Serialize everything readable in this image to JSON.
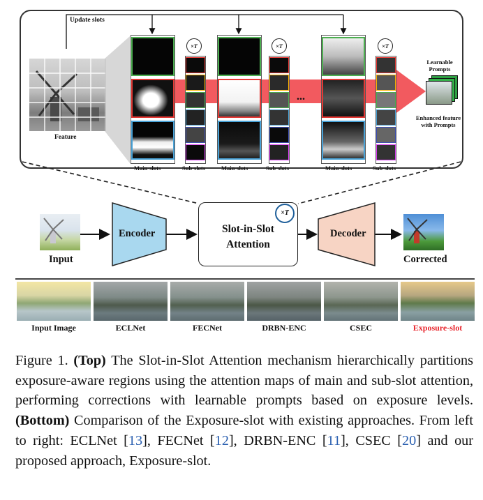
{
  "top": {
    "update_slots": "Update slots",
    "feature_label": "Feature",
    "ellipsis": "...",
    "learnable_prompts": "Learnable Prompts",
    "enhanced_feature": "Enhanced feature with Prompts",
    "main_slots_label": "Main-slots",
    "sub_slots_label": "Sub-slots",
    "iter_symbol": "×T"
  },
  "pipeline": {
    "input_label": "Input",
    "encoder_label": "Encoder",
    "slot_title_line1": "Slot-in-Slot",
    "slot_title_line2": "Attention",
    "decoder_label": "Decoder",
    "corrected_label": "Corrected"
  },
  "comparison": {
    "labels": [
      "Input Image",
      "ECLNet",
      "FECNet",
      "DRBN-ENC",
      "CSEC",
      "Exposure-slot"
    ],
    "highlight_color": "#e8242b"
  },
  "caption": {
    "prefix": "Figure 1.",
    "top_tag": "(Top)",
    "top_text": "The Slot-in-Slot Attention mechanism hierarchically partitions exposure-aware regions using the attention maps of main and sub-slot attention, performing corrections with learnable prompts based on exposure levels.",
    "bottom_tag": "(Bottom)",
    "bottom_text": "Comparison of the Exposure-slot with existing approaches. From left to right:",
    "methods": [
      {
        "name": "ECLNet",
        "ref": "13"
      },
      {
        "name": "FECNet",
        "ref": "12"
      },
      {
        "name": "DRBN-ENC",
        "ref": "11"
      },
      {
        "name": "CSEC",
        "ref": "20"
      }
    ],
    "ending": "and our proposed approach, Exposure-slot."
  },
  "colors": {
    "encoder": "#a9d8ef",
    "decoder": "#f7d4c4",
    "arrow_red": "#f25a5f",
    "ref_blue": "#2a5fb0",
    "green_border": "#4caf50",
    "red_border": "#e53935",
    "blue_border": "#4aa3d8"
  }
}
